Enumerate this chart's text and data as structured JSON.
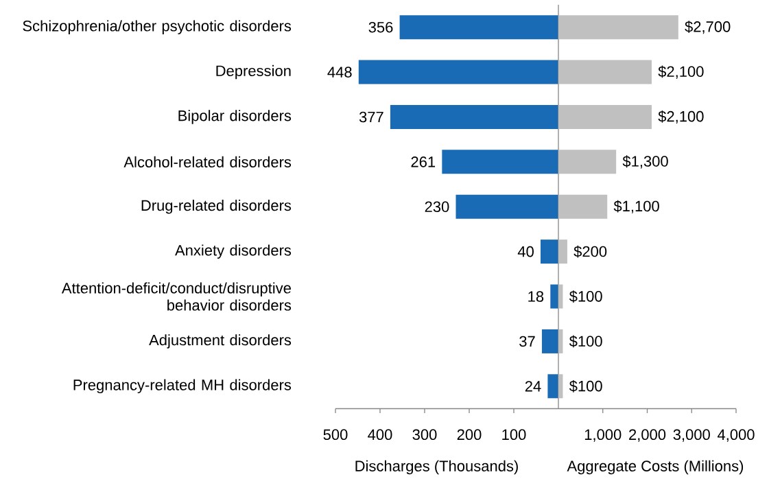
{
  "chart_data": [
    {
      "type": "bar",
      "orientation": "horizontal",
      "categories": [
        "Schizophrenia/other psychotic disorders",
        "Depression",
        "Bipolar disorders",
        "Alcohol-related disorders",
        "Drug-related disorders",
        "Anxiety disorders",
        "Attention-deficit/conduct/disruptive behavior disorders",
        "Adjustment disorders",
        "Pregnancy-related MH disorders"
      ],
      "values": [
        356,
        448,
        377,
        261,
        230,
        40,
        18,
        37,
        24
      ],
      "color": "#1a6bb6",
      "xlim": [
        500,
        0
      ],
      "xticks": [
        500,
        400,
        300,
        200,
        100
      ],
      "xlabel": "Discharges (Thousands)",
      "data_labels": true
    },
    {
      "type": "bar",
      "orientation": "horizontal",
      "categories": [
        null,
        null,
        null,
        null,
        null,
        null,
        null,
        null,
        null
      ],
      "values": [
        2700,
        2100,
        2100,
        1300,
        1100,
        200,
        100,
        100,
        100
      ],
      "value_labels": [
        "$2,700",
        "$2,100",
        "$2,100",
        "$1,300",
        "$1,100",
        "$200",
        "$100",
        "$100",
        "$100"
      ],
      "color": "#c0c0c0",
      "xlim": [
        0,
        4000
      ],
      "xticks": [
        {
          "value": 1000,
          "label": "1,000"
        },
        {
          "value": 2000,
          "label": "2,000"
        },
        {
          "value": 3000,
          "label": "3,000"
        },
        {
          "value": 4000,
          "label": "4,000"
        }
      ],
      "xlabel": "Aggregate Costs (Millions)"
    }
  ]
}
